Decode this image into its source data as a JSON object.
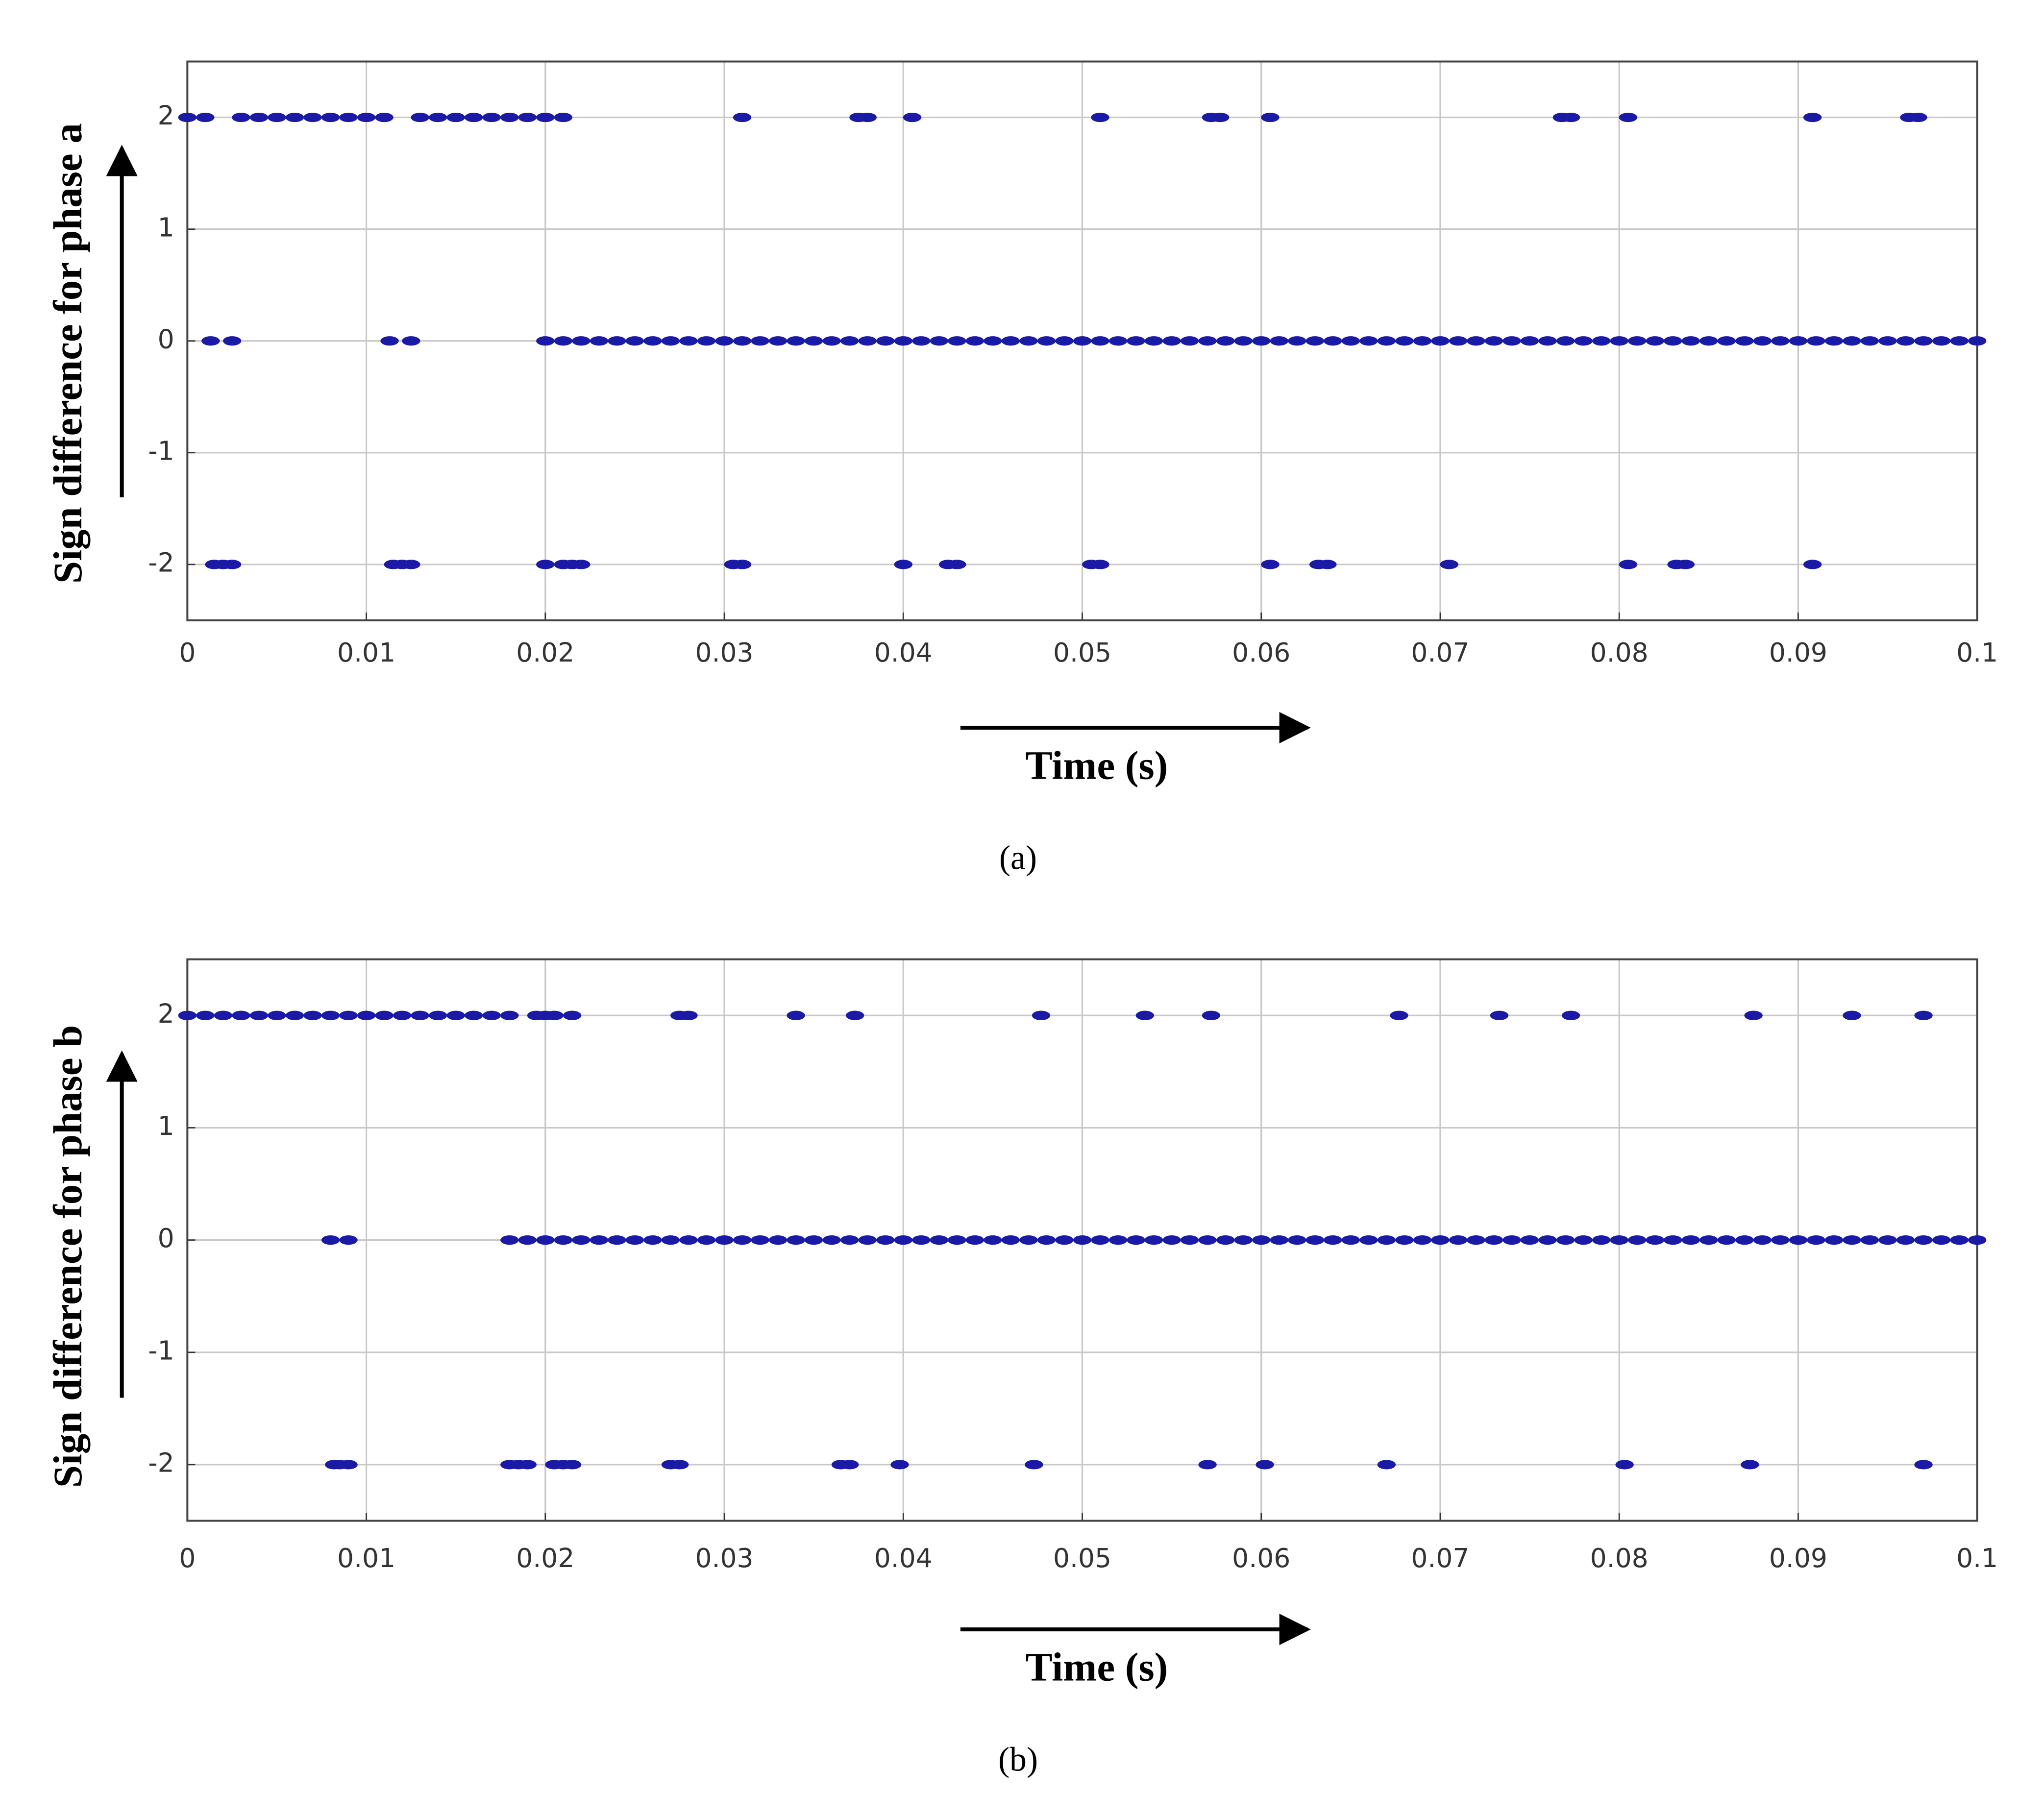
{
  "chart_data": [
    {
      "type": "scatter",
      "y_label": "Sign difference for phase a",
      "x_label": "Time (s)",
      "caption": "(a)",
      "xlim": [
        0,
        0.1
      ],
      "ylim": [
        -2.5,
        2.5
      ],
      "xticks": [
        0,
        0.01,
        0.02,
        0.03,
        0.04,
        0.05,
        0.06,
        0.07,
        0.08,
        0.09,
        0.1
      ],
      "yticks": [
        -2,
        -1,
        0,
        1,
        2
      ],
      "grid": true,
      "series": [
        {
          "color": "#1a1aa6",
          "x": [
            0,
            0.001,
            0.003,
            0.004,
            0.005,
            0.006,
            0.007,
            0.008,
            0.009,
            0.01,
            0.011,
            0.013,
            0.014,
            0.015,
            0.016,
            0.017,
            0.018,
            0.019,
            0.02,
            0.021,
            0.031,
            0.0375,
            0.038,
            0.0405,
            0.051,
            0.0572,
            0.0577,
            0.0605,
            0.0768,
            0.0773,
            0.0805,
            0.0908,
            0.0962,
            0.0967
          ],
          "values": [
            2,
            2,
            2,
            2,
            2,
            2,
            2,
            2,
            2,
            2,
            2,
            2,
            2,
            2,
            2,
            2,
            2,
            2,
            2,
            2,
            2,
            2,
            2,
            2,
            2,
            2,
            2,
            2,
            2,
            2,
            2,
            2,
            2,
            2
          ]
        },
        {
          "color": "#1a1aa6",
          "x": [
            0.0013,
            0.0025,
            0.0113,
            0.0125,
            0.02,
            0.021,
            0.022,
            0.023,
            0.024,
            0.025,
            0.026,
            0.027,
            0.028,
            0.029,
            0.03,
            0.031,
            0.032,
            0.033,
            0.034,
            0.035,
            0.036,
            0.037,
            0.038,
            0.039,
            0.04,
            0.041,
            0.042,
            0.043,
            0.044,
            0.045,
            0.046,
            0.047,
            0.048,
            0.049,
            0.05,
            0.051,
            0.052,
            0.053,
            0.054,
            0.055,
            0.056,
            0.057,
            0.058,
            0.059,
            0.06,
            0.061,
            0.062,
            0.063,
            0.064,
            0.065,
            0.066,
            0.067,
            0.068,
            0.069,
            0.07,
            0.071,
            0.072,
            0.073,
            0.074,
            0.075,
            0.076,
            0.077,
            0.078,
            0.079,
            0.08,
            0.081,
            0.082,
            0.083,
            0.084,
            0.085,
            0.086,
            0.087,
            0.088,
            0.089,
            0.09,
            0.091,
            0.092,
            0.093,
            0.094,
            0.095,
            0.096,
            0.097,
            0.098,
            0.099,
            0.1
          ],
          "values": [
            0,
            0,
            0,
            0,
            0,
            0,
            0,
            0,
            0,
            0,
            0,
            0,
            0,
            0,
            0,
            0,
            0,
            0,
            0,
            0,
            0,
            0,
            0,
            0,
            0,
            0,
            0,
            0,
            0,
            0,
            0,
            0,
            0,
            0,
            0,
            0,
            0,
            0,
            0,
            0,
            0,
            0,
            0,
            0,
            0,
            0,
            0,
            0,
            0,
            0,
            0,
            0,
            0,
            0,
            0,
            0,
            0,
            0,
            0,
            0,
            0,
            0,
            0,
            0,
            0,
            0,
            0,
            0,
            0,
            0,
            0,
            0,
            0,
            0,
            0,
            0,
            0,
            0,
            0,
            0,
            0,
            0,
            0,
            0,
            0
          ]
        },
        {
          "color": "#1a1aa6",
          "x": [
            0.0015,
            0.002,
            0.0025,
            0.0115,
            0.012,
            0.0125,
            0.02,
            0.021,
            0.0215,
            0.022,
            0.0305,
            0.031,
            0.04,
            0.0425,
            0.043,
            0.0505,
            0.051,
            0.0605,
            0.0632,
            0.0637,
            0.0705,
            0.0805,
            0.0832,
            0.0837,
            0.0908
          ],
          "values": [
            -2,
            -2,
            -2,
            -2,
            -2,
            -2,
            -2,
            -2,
            -2,
            -2,
            -2,
            -2,
            -2,
            -2,
            -2,
            -2,
            -2,
            -2,
            -2,
            -2,
            -2,
            -2,
            -2,
            -2,
            -2
          ]
        }
      ]
    },
    {
      "type": "scatter",
      "y_label": "Sign difference for phase b",
      "x_label": "Time (s)",
      "caption": "(b)",
      "xlim": [
        0,
        0.1
      ],
      "ylim": [
        -2.5,
        2.5
      ],
      "xticks": [
        0,
        0.01,
        0.02,
        0.03,
        0.04,
        0.05,
        0.06,
        0.07,
        0.08,
        0.09,
        0.1
      ],
      "yticks": [
        -2,
        -1,
        0,
        1,
        2
      ],
      "grid": true,
      "series": [
        {
          "color": "#1a1aa6",
          "x": [
            0,
            0.001,
            0.002,
            0.003,
            0.004,
            0.005,
            0.006,
            0.007,
            0.008,
            0.009,
            0.01,
            0.011,
            0.012,
            0.013,
            0.014,
            0.015,
            0.016,
            0.017,
            0.018,
            0.0195,
            0.02,
            0.0205,
            0.0215,
            0.0275,
            0.028,
            0.034,
            0.0373,
            0.0477,
            0.0535,
            0.0572,
            0.0677,
            0.0733,
            0.0773,
            0.0875,
            0.093,
            0.097
          ],
          "values": [
            2,
            2,
            2,
            2,
            2,
            2,
            2,
            2,
            2,
            2,
            2,
            2,
            2,
            2,
            2,
            2,
            2,
            2,
            2,
            2,
            2,
            2,
            2,
            2,
            2,
            2,
            2,
            2,
            2,
            2,
            2,
            2,
            2,
            2,
            2,
            2
          ]
        },
        {
          "color": "#1a1aa6",
          "x": [
            0.008,
            0.009,
            0.018,
            0.019,
            0.02,
            0.021,
            0.022,
            0.023,
            0.024,
            0.025,
            0.026,
            0.027,
            0.028,
            0.029,
            0.03,
            0.031,
            0.032,
            0.033,
            0.034,
            0.035,
            0.036,
            0.037,
            0.038,
            0.039,
            0.04,
            0.041,
            0.042,
            0.043,
            0.044,
            0.045,
            0.046,
            0.047,
            0.048,
            0.049,
            0.05,
            0.051,
            0.052,
            0.053,
            0.054,
            0.055,
            0.056,
            0.057,
            0.058,
            0.059,
            0.06,
            0.061,
            0.062,
            0.063,
            0.064,
            0.065,
            0.066,
            0.067,
            0.068,
            0.069,
            0.07,
            0.071,
            0.072,
            0.073,
            0.074,
            0.075,
            0.076,
            0.077,
            0.078,
            0.079,
            0.08,
            0.081,
            0.082,
            0.083,
            0.084,
            0.085,
            0.086,
            0.087,
            0.088,
            0.089,
            0.09,
            0.091,
            0.092,
            0.093,
            0.094,
            0.095,
            0.096,
            0.097,
            0.098,
            0.099,
            0.1
          ],
          "values": [
            0,
            0,
            0,
            0,
            0,
            0,
            0,
            0,
            0,
            0,
            0,
            0,
            0,
            0,
            0,
            0,
            0,
            0,
            0,
            0,
            0,
            0,
            0,
            0,
            0,
            0,
            0,
            0,
            0,
            0,
            0,
            0,
            0,
            0,
            0,
            0,
            0,
            0,
            0,
            0,
            0,
            0,
            0,
            0,
            0,
            0,
            0,
            0,
            0,
            0,
            0,
            0,
            0,
            0,
            0,
            0,
            0,
            0,
            0,
            0,
            0,
            0,
            0,
            0,
            0,
            0,
            0,
            0,
            0,
            0,
            0,
            0,
            0,
            0,
            0,
            0,
            0,
            0,
            0,
            0,
            0,
            0,
            0,
            0,
            0
          ]
        },
        {
          "color": "#1a1aa6",
          "x": [
            0.0082,
            0.0085,
            0.009,
            0.018,
            0.0185,
            0.019,
            0.0205,
            0.021,
            0.0215,
            0.027,
            0.0275,
            0.0365,
            0.037,
            0.0398,
            0.0473,
            0.057,
            0.0602,
            0.067,
            0.0803,
            0.0873,
            0.097
          ],
          "values": [
            -2,
            -2,
            -2,
            -2,
            -2,
            -2,
            -2,
            -2,
            -2,
            -2,
            -2,
            -2,
            -2,
            -2,
            -2,
            -2,
            -2,
            -2,
            -2,
            -2,
            -2
          ]
        }
      ]
    }
  ]
}
